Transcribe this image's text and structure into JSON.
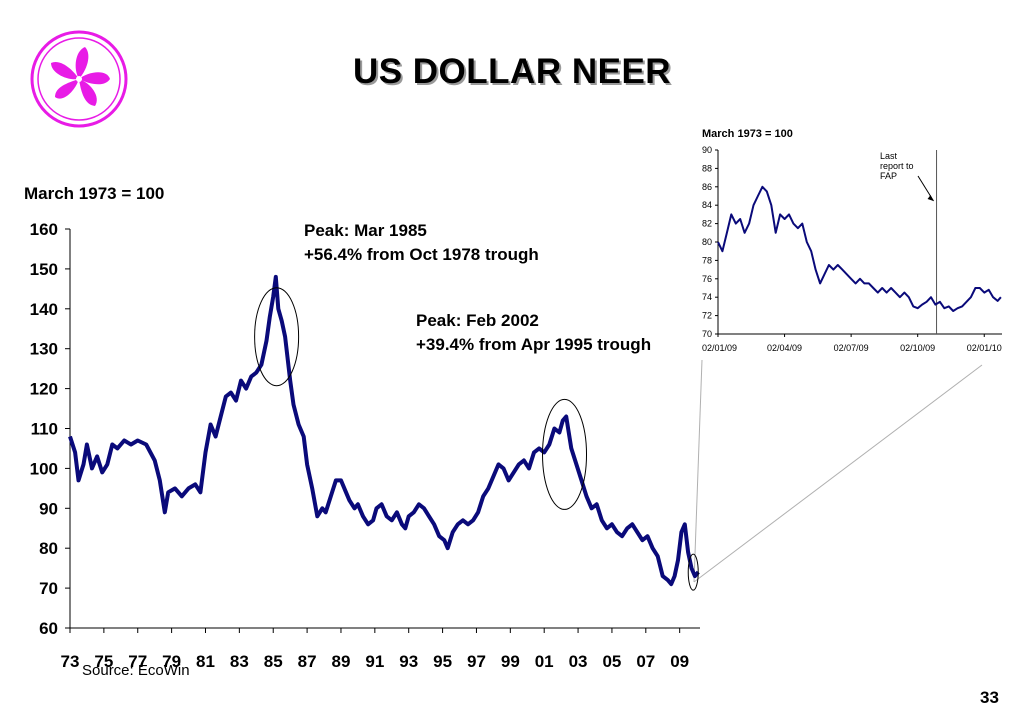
{
  "slide": {
    "title": "US DOLLAR NEER",
    "source": "Source: EcoWin",
    "page_number": "33"
  },
  "logo": {
    "name": "hk-bauhinia-icon",
    "color": "#e81be6"
  },
  "chart_data": [
    {
      "type": "line",
      "unit_label": "March 1973 = 100",
      "ylim": [
        60,
        160
      ],
      "yticks": [
        60,
        70,
        80,
        90,
        100,
        110,
        120,
        130,
        140,
        150,
        160
      ],
      "xticks": [
        "73",
        "75",
        "77",
        "79",
        "81",
        "83",
        "85",
        "87",
        "89",
        "91",
        "93",
        "95",
        "97",
        "99",
        "01",
        "03",
        "05",
        "07",
        "09"
      ],
      "xrange": [
        1973,
        2010.2
      ],
      "line_color": "#0a0a7a",
      "series": [
        {
          "x": [
            1973.0,
            1973.3,
            1973.5,
            1973.8,
            1974.0,
            1974.3,
            1974.6,
            1974.9,
            1975.2,
            1975.5,
            1975.8,
            1976.2,
            1976.6,
            1977.0,
            1977.5,
            1978.0,
            1978.3,
            1978.6,
            1978.8,
            1979.2,
            1979.6,
            1980.0,
            1980.4,
            1980.7,
            1981.0,
            1981.3,
            1981.6,
            1981.9,
            1982.2,
            1982.5,
            1982.8,
            1983.1,
            1983.4,
            1983.7,
            1984.0,
            1984.3,
            1984.6,
            1984.8,
            1985.0,
            1985.15,
            1985.3,
            1985.5,
            1985.7,
            1986.0,
            1986.2,
            1986.5,
            1986.8,
            1987.0,
            1987.3,
            1987.6,
            1987.9,
            1988.1,
            1988.4,
            1988.7,
            1989.0,
            1989.3,
            1989.5,
            1989.8,
            1990.0,
            1990.3,
            1990.6,
            1990.9,
            1991.1,
            1991.4,
            1991.7,
            1992.0,
            1992.3,
            1992.6,
            1992.8,
            1993.0,
            1993.3,
            1993.6,
            1993.9,
            1994.2,
            1994.5,
            1994.8,
            1995.1,
            1995.3,
            1995.6,
            1995.9,
            1996.2,
            1996.5,
            1996.8,
            1997.1,
            1997.4,
            1997.7,
            1998.0,
            1998.3,
            1998.6,
            1998.9,
            1999.2,
            1999.5,
            1999.8,
            2000.1,
            2000.4,
            2000.7,
            2001.0,
            2001.3,
            2001.6,
            2001.9,
            2002.1,
            2002.3,
            2002.6,
            2002.9,
            2003.2,
            2003.5,
            2003.8,
            2004.1,
            2004.4,
            2004.7,
            2005.0,
            2005.3,
            2005.6,
            2005.9,
            2006.2,
            2006.5,
            2006.8,
            2007.1,
            2007.4,
            2007.7,
            2008.0,
            2008.3,
            2008.5,
            2008.7,
            2008.9,
            2009.1,
            2009.3,
            2009.5,
            2009.7,
            2009.9,
            2010.1
          ],
          "y": [
            108,
            104,
            97,
            101,
            106,
            100,
            103,
            99,
            101,
            106,
            105,
            107,
            106,
            107,
            106,
            102,
            97,
            89,
            94,
            95,
            93,
            95,
            96,
            94,
            104,
            111,
            108,
            113,
            118,
            119,
            117,
            122,
            120,
            123,
            124,
            126,
            132,
            138,
            143,
            148,
            140,
            137,
            133,
            122,
            116,
            111,
            108,
            101,
            95,
            88,
            90,
            89,
            93,
            97,
            97,
            94,
            92,
            90,
            91,
            88,
            86,
            87,
            90,
            91,
            88,
            87,
            89,
            86,
            85,
            88,
            89,
            91,
            90,
            88,
            86,
            83,
            82,
            80,
            84,
            86,
            87,
            86,
            87,
            89,
            93,
            95,
            98,
            101,
            100,
            97,
            99,
            101,
            102,
            100,
            104,
            105,
            104,
            106,
            110,
            109,
            112,
            113,
            105,
            101,
            97,
            93,
            90,
            91,
            87,
            85,
            86,
            84,
            83,
            85,
            86,
            84,
            82,
            83,
            80,
            78,
            73,
            72,
            71,
            73,
            77,
            84,
            86,
            79,
            75,
            73,
            74
          ]
        }
      ]
    },
    {
      "type": "line",
      "unit_label": "March 1973 = 100",
      "ylim": [
        70,
        90
      ],
      "yticks": [
        70,
        72,
        74,
        76,
        78,
        80,
        82,
        84,
        86,
        88,
        90
      ],
      "xticks": [
        "02/01/09",
        "02/04/09",
        "02/07/09",
        "02/10/09",
        "02/01/10"
      ],
      "xrange": [
        0,
        12.8
      ],
      "line_color": "#0a0a7a",
      "series": [
        {
          "x": [
            0,
            0.2,
            0.4,
            0.6,
            0.8,
            1.0,
            1.2,
            1.4,
            1.6,
            1.8,
            2.0,
            2.2,
            2.4,
            2.6,
            2.8,
            3.0,
            3.2,
            3.4,
            3.6,
            3.8,
            4.0,
            4.2,
            4.4,
            4.6,
            4.8,
            5.0,
            5.2,
            5.4,
            5.6,
            5.8,
            6.0,
            6.2,
            6.4,
            6.6,
            6.8,
            7.0,
            7.2,
            7.4,
            7.6,
            7.8,
            8.0,
            8.2,
            8.4,
            8.6,
            8.8,
            9.0,
            9.2,
            9.4,
            9.6,
            9.8,
            10.0,
            10.2,
            10.4,
            10.6,
            10.8,
            11.0,
            11.2,
            11.4,
            11.6,
            11.8,
            12.0,
            12.2,
            12.4,
            12.6,
            12.75
          ],
          "y": [
            80,
            79,
            81,
            83,
            82,
            82.5,
            81,
            82,
            84,
            85,
            86,
            85.5,
            84,
            81,
            83,
            82.5,
            83,
            82,
            81.5,
            82,
            80,
            79,
            77,
            75.5,
            76.5,
            77.5,
            77,
            77.5,
            77,
            76.5,
            76,
            75.5,
            76,
            75.5,
            75.5,
            75,
            74.5,
            75,
            74.5,
            75,
            74.5,
            74,
            74.5,
            74,
            73,
            72.8,
            73.2,
            73.5,
            74,
            73.2,
            73.5,
            72.8,
            73,
            72.5,
            72.8,
            73,
            73.5,
            74,
            75,
            75,
            74.5,
            74.8,
            74,
            73.6,
            74
          ]
        }
      ],
      "annotation": "Last report to FAP",
      "marker_x": 9.85
    }
  ],
  "annotations": {
    "peak1_line1": "Peak: Mar 1985",
    "peak1_line2": "+56.4% from Oct 1978 trough",
    "peak2_line1": "Peak: Feb 2002",
    "peak2_line2": "+39.4% from Apr 1995 trough",
    "inset_note_line1": "Last",
    "inset_note_line2": "report to",
    "inset_note_line3": "FAP"
  }
}
